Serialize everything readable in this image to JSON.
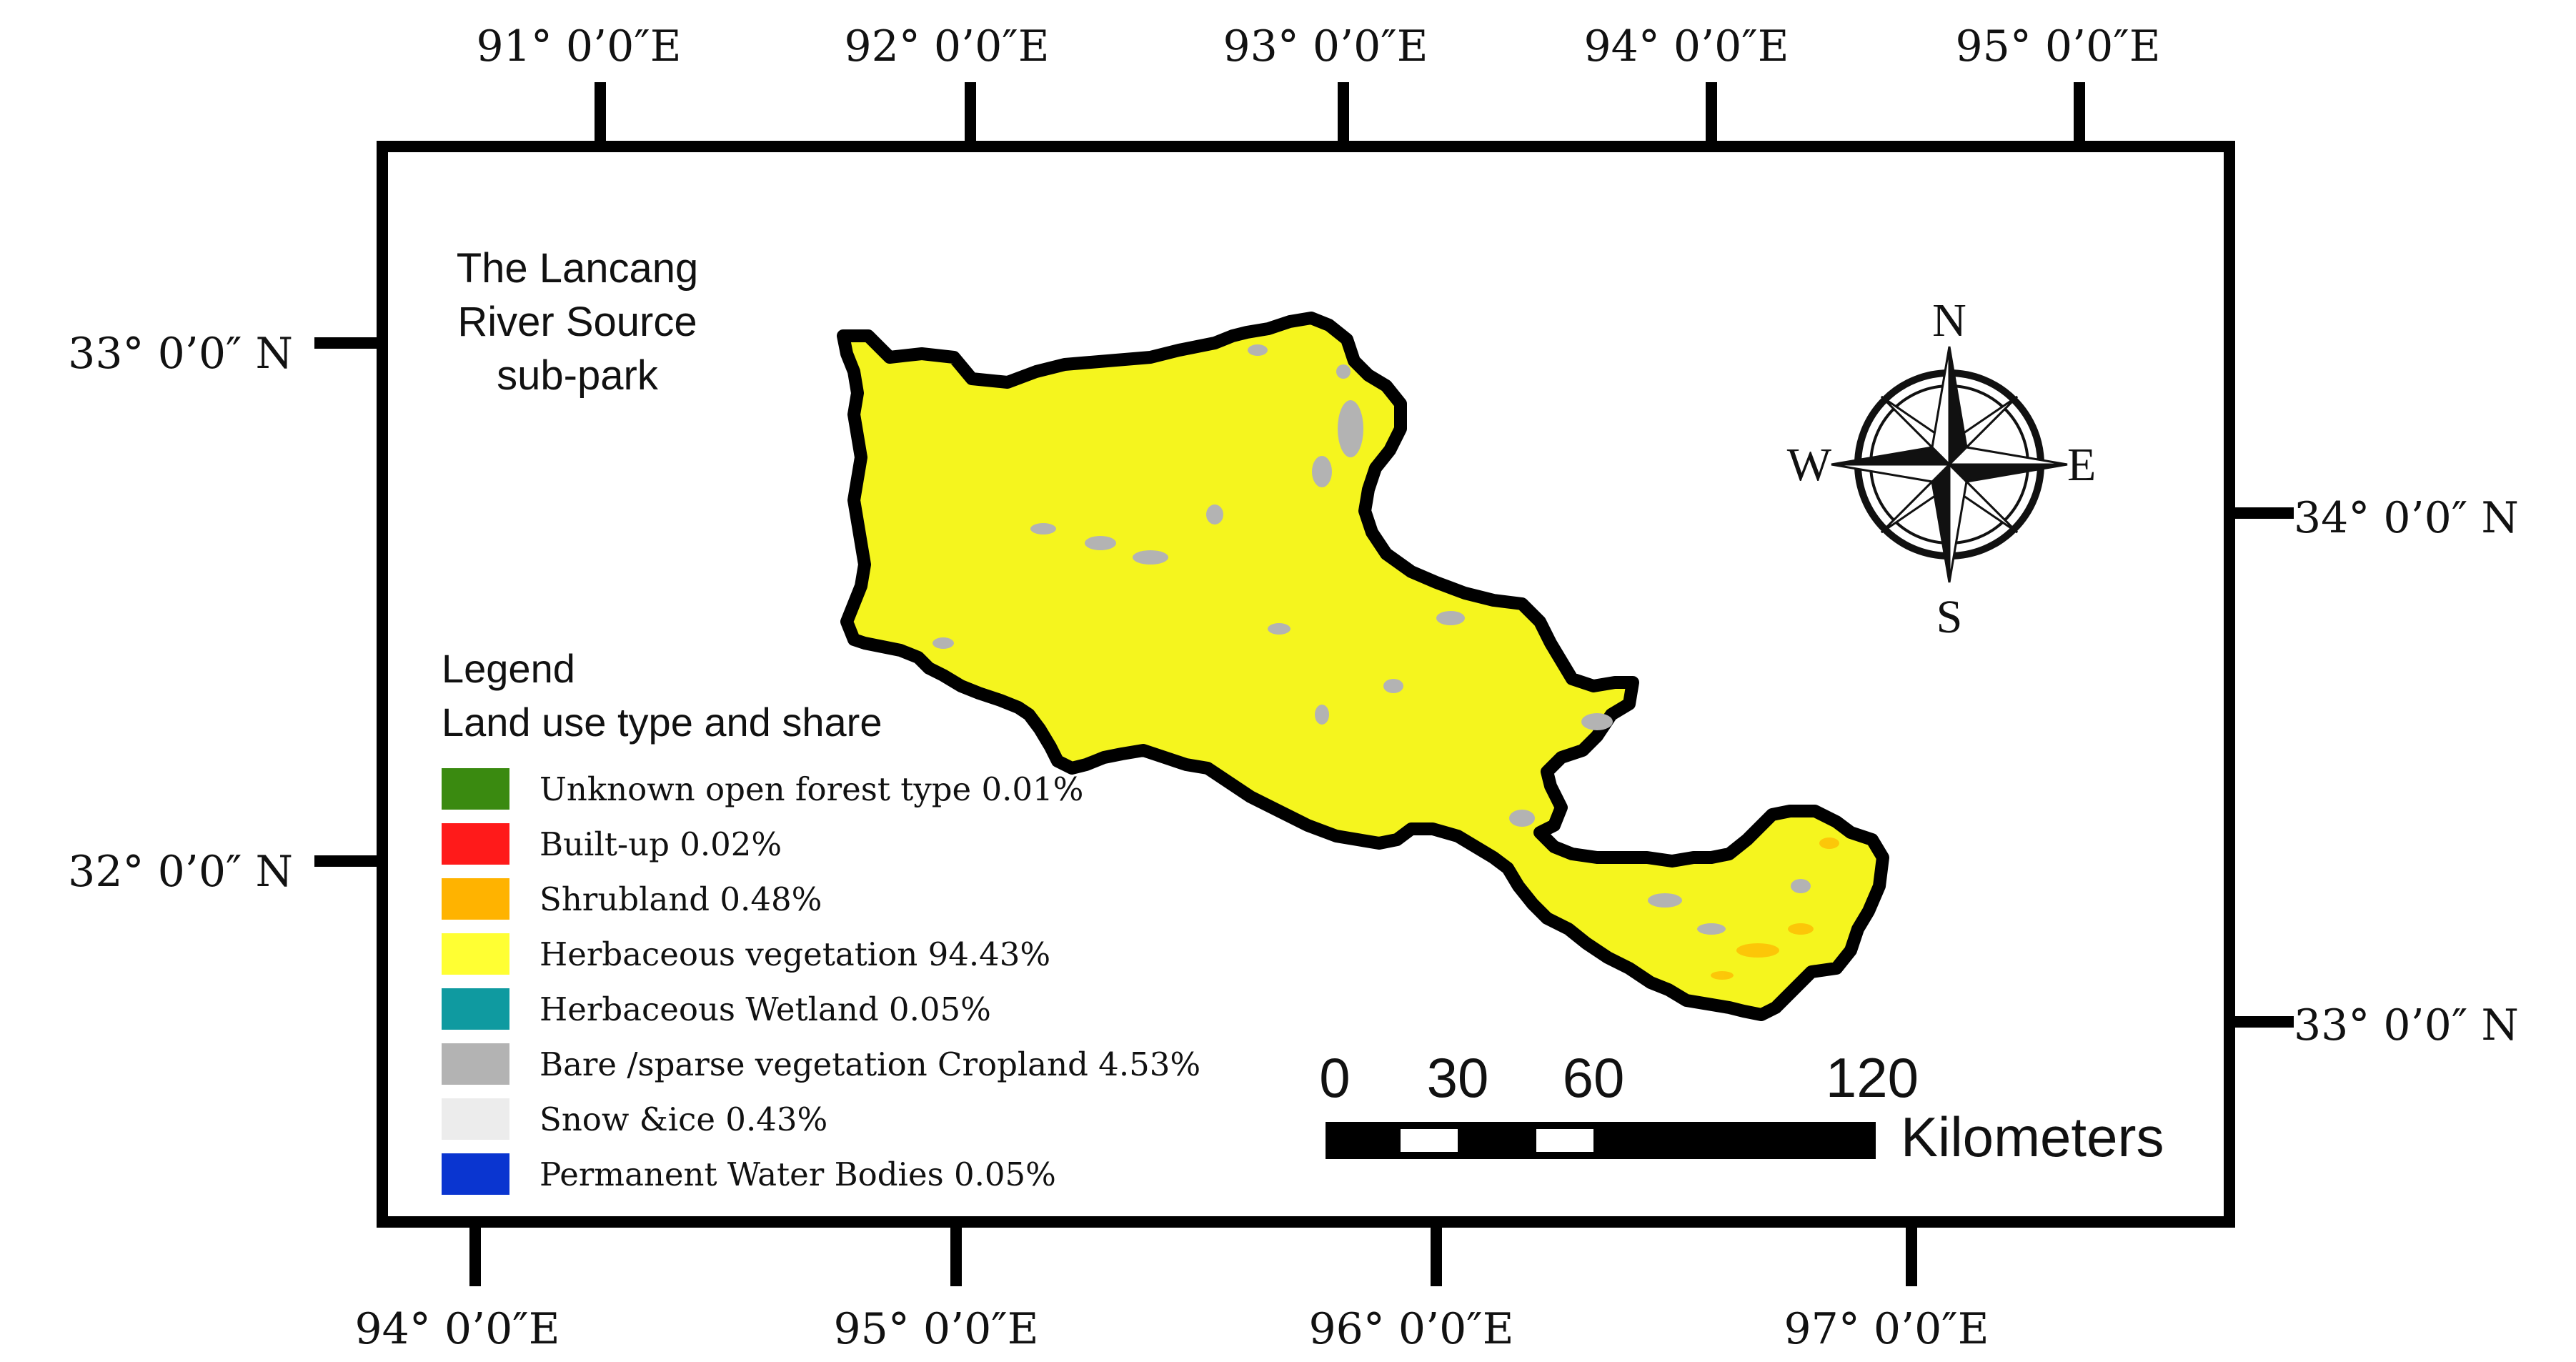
{
  "title": [
    "The Lancang",
    "River Source",
    "sub-park"
  ],
  "coords": {
    "top": [
      "91° 0’0″E",
      "92° 0’0″E",
      "93° 0’0″E",
      "94° 0’0″E",
      "95° 0’0″E"
    ],
    "bottom": [
      "94° 0’0″E",
      "95° 0’0″E",
      "96° 0’0″E",
      "97° 0’0″E"
    ],
    "left": [
      "33° 0’0″ N",
      "32° 0’0″ N"
    ],
    "right": [
      "34° 0’0″ N",
      "33° 0’0″ N"
    ]
  },
  "legend": {
    "heading": "Legend",
    "subheading": "Land use type and share",
    "items": [
      {
        "label": "Unknown open forest type 0.01%",
        "color": "#3a8a10"
      },
      {
        "label": "Built-up 0.02%",
        "color": "#ff1a1a"
      },
      {
        "label": "Shrubland 0.48%",
        "color": "#ffb300"
      },
      {
        "label": "Herbaceous vegetation 94.43%",
        "color": "#ffff33"
      },
      {
        "label": "Herbaceous Wetland 0.05%",
        "color": "#0f9aa0"
      },
      {
        "label": "Bare /sparse vegetation Cropland 4.53%",
        "color": "#b3b3b3"
      },
      {
        "label": "Snow &ice 0.43%",
        "color": "#ececec"
      },
      {
        "label": "Permanent Water Bodies 0.05%",
        "color": "#0a35d0"
      }
    ]
  },
  "compass": {
    "n": "N",
    "s": "S",
    "e": "E",
    "w": "W"
  },
  "scale": {
    "ticks": [
      "0",
      "30",
      "60",
      "120"
    ],
    "unit": "Kilometers"
  },
  "colors": {
    "region_fill": "#f5f51e",
    "region_outline": "#000000",
    "frame": "#000000"
  }
}
